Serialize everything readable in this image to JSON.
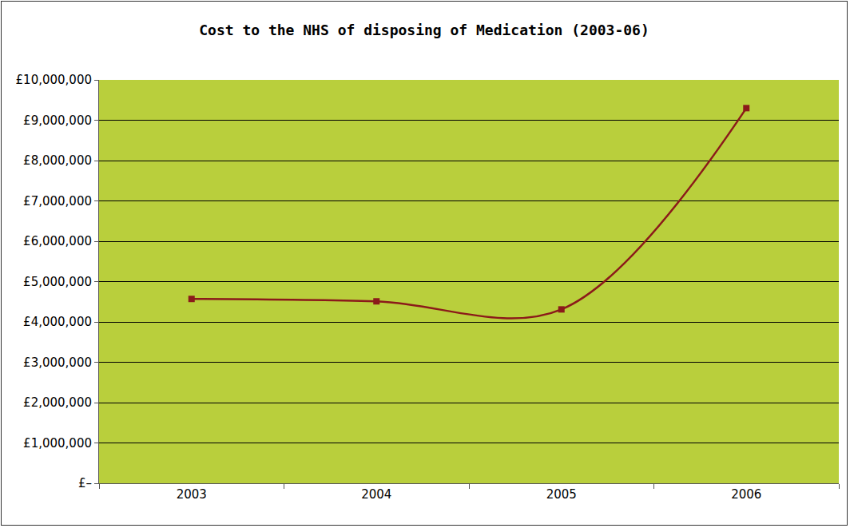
{
  "chart_data": {
    "type": "line",
    "title": "Cost to the NHS of disposing of Medication (2003-06)",
    "categories": [
      "2003",
      "2004",
      "2005",
      "2006"
    ],
    "series": [
      {
        "name": "Cost",
        "color": "#8b1a1a",
        "marker": "square",
        "line_style": "smooth",
        "values": [
          4570000,
          4510000,
          4310000,
          9300000
        ]
      }
    ],
    "ylim": [
      0,
      10000000
    ],
    "yticks": [
      {
        "value": 0,
        "label": "£–"
      },
      {
        "value": 1000000,
        "label": "£1,000,000"
      },
      {
        "value": 2000000,
        "label": "£2,000,000"
      },
      {
        "value": 3000000,
        "label": "£3,000,000"
      },
      {
        "value": 4000000,
        "label": "£4,000,000"
      },
      {
        "value": 5000000,
        "label": "£5,000,000"
      },
      {
        "value": 6000000,
        "label": "£6,000,000"
      },
      {
        "value": 7000000,
        "label": "£7,000,000"
      },
      {
        "value": 8000000,
        "label": "£8,000,000"
      },
      {
        "value": 9000000,
        "label": "£9,000,000"
      },
      {
        "value": 10000000,
        "label": "£10,000,000"
      }
    ],
    "grid": true
  }
}
